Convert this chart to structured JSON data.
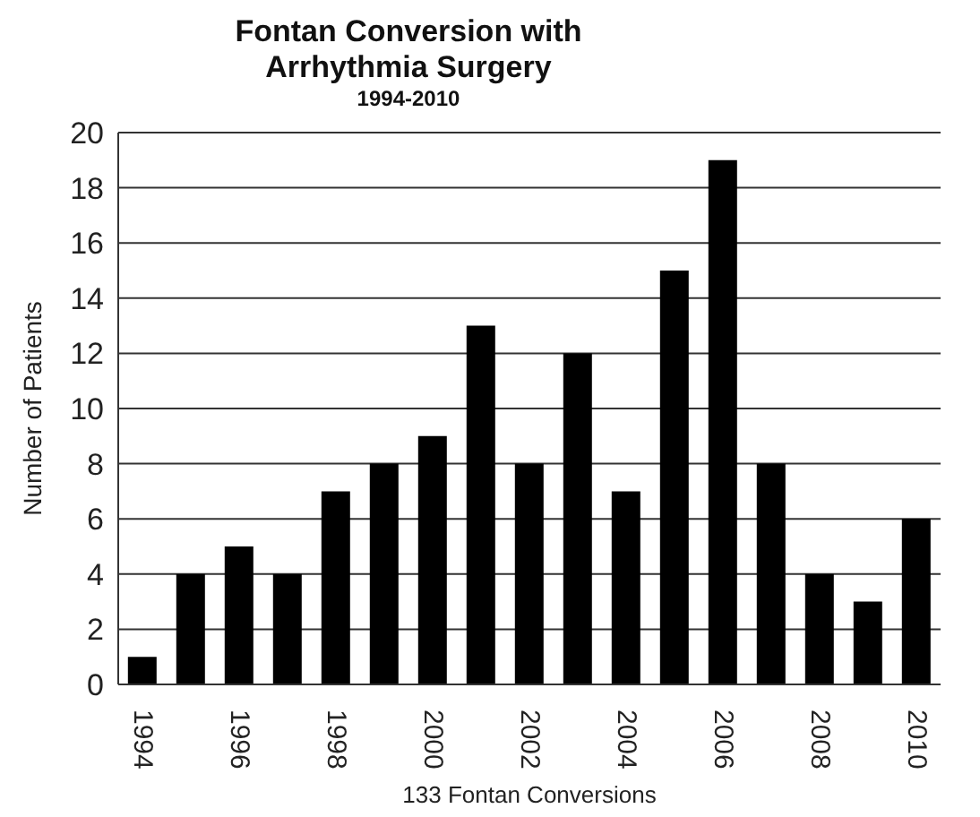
{
  "chart_data": {
    "type": "bar",
    "title": "Fontan Conversion with Arrhythmia Surgery",
    "subtitle": "1994-2010",
    "xlabel": "133 Fontan Conversions",
    "ylabel": "Number of Patients",
    "categories": [
      "1994",
      null,
      "1996",
      null,
      "1998",
      null,
      "2000",
      null,
      "2002",
      null,
      "2004",
      null,
      "2006",
      null,
      "2008",
      null,
      "2010"
    ],
    "values": [
      1,
      4,
      5,
      4,
      7,
      8,
      9,
      13,
      8,
      12,
      7,
      15,
      19,
      8,
      4,
      3,
      6
    ],
    "color": "#000000",
    "ylim": [
      0,
      20
    ],
    "yticks": [
      0,
      2,
      4,
      6,
      8,
      10,
      12,
      14,
      16,
      18,
      20
    ],
    "grid": "y"
  }
}
